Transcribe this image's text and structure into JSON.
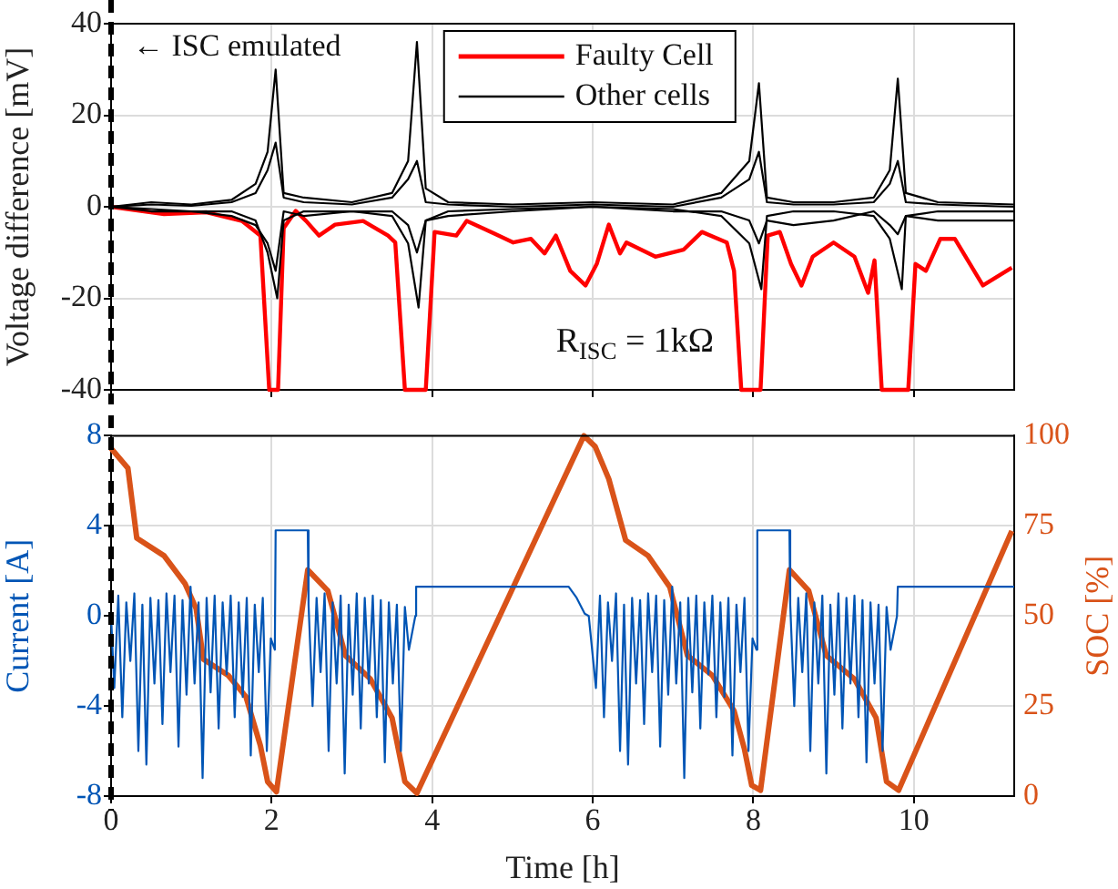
{
  "chart_data": [
    {
      "type": "line",
      "ylabel": "Voltage difference [mV]",
      "xlim": [
        0,
        11.25
      ],
      "xticks": [
        0,
        2,
        4,
        6,
        8,
        10
      ],
      "ylim": [
        -40,
        40
      ],
      "yticks": [
        -40,
        -20,
        0,
        20,
        40
      ],
      "grid": true,
      "tick_labels": "y",
      "legend": "top",
      "line_style": "solid",
      "marker": "none",
      "annotations": [
        "R$_{ISC}$ = 1kΩ"
      ],
      "ref_lines": [
        {
          "axis": "x",
          "value": 0,
          "label": "← ISC emulated",
          "color": "#000000",
          "line_style": "dashed"
        }
      ],
      "series": [
        {
          "color": "#000000",
          "x": [
            0,
            0.5,
            1,
            1.5,
            1.8,
            1.95,
            2.05,
            2.15,
            2.4,
            3,
            3.5,
            3.7,
            3.81,
            3.92,
            4.2,
            5,
            6,
            7,
            7.6,
            7.95,
            8.07,
            8.17,
            8.5,
            9,
            9.5,
            9.7,
            9.8,
            9.9,
            10.3,
            11.25
          ],
          "values": [
            0,
            0.5,
            0.2,
            1,
            3,
            8,
            14,
            2,
            1,
            0.5,
            2,
            6,
            10,
            1,
            0.5,
            0,
            0.5,
            0,
            2,
            6,
            12,
            1,
            0.5,
            0.5,
            1,
            5,
            10,
            1,
            0.5,
            0
          ]
        },
        {
          "color": "#000000",
          "x": [
            0,
            0.5,
            1,
            1.5,
            1.8,
            1.95,
            2.05,
            2.15,
            2.4,
            3,
            3.5,
            3.7,
            3.81,
            3.92,
            4.2,
            5,
            6,
            7,
            7.6,
            7.95,
            8.07,
            8.17,
            8.5,
            9,
            9.5,
            9.7,
            9.8,
            9.9,
            10.3,
            11.25
          ],
          "values": [
            0,
            -0.5,
            -1,
            -2,
            -4,
            -8,
            -14,
            -1,
            -2,
            -1,
            -1,
            -4,
            -10,
            -3,
            -2,
            -1,
            0,
            -1,
            -1,
            -3,
            -8,
            -3,
            -4,
            -3,
            -1,
            -4,
            -6,
            -2,
            -3,
            -3
          ]
        },
        {
          "color": "#000000",
          "x": [
            0,
            0.5,
            1,
            1.5,
            1.8,
            1.95,
            2.07,
            2.15,
            2.4,
            3,
            3.5,
            3.7,
            3.83,
            3.92,
            4.2,
            5,
            6,
            7,
            7.6,
            7.95,
            8.1,
            8.17,
            8.5,
            9,
            9.5,
            9.7,
            9.85,
            9.9,
            10.3,
            11.25
          ],
          "values": [
            0,
            -1,
            -1,
            -1,
            -3,
            -10,
            -20,
            -3,
            -1,
            -1,
            -2,
            -8,
            -22,
            -3,
            -1,
            -0.5,
            0,
            -0.5,
            -2,
            -8,
            -18,
            -2,
            -1,
            -1,
            -2,
            -7,
            -18,
            -2,
            -1,
            -1
          ]
        },
        {
          "name": "Other cells",
          "color": "#000000",
          "x": [
            0,
            0.5,
            1,
            1.5,
            1.8,
            1.95,
            2.05,
            2.15,
            2.4,
            3,
            3.5,
            3.7,
            3.81,
            3.92,
            4.2,
            5,
            6,
            7,
            7.6,
            7.95,
            8.07,
            8.17,
            8.5,
            9,
            9.5,
            9.7,
            9.8,
            9.9,
            10.3,
            11.25
          ],
          "values": [
            0,
            1,
            0.5,
            1.5,
            5,
            12,
            30,
            3,
            2,
            1,
            3,
            10,
            36,
            4,
            1,
            0.5,
            1,
            0.5,
            3,
            10,
            27,
            2,
            1,
            1,
            2,
            8,
            28,
            3,
            1,
            0.5
          ]
        },
        {
          "name": "Faulty Cell",
          "color": "#ff0000",
          "x": [
            0,
            0.66,
            1.19,
            1.63,
            1.86,
            1.97,
            2.08,
            2.15,
            2.3,
            2.43,
            2.59,
            2.79,
            3.14,
            3.45,
            3.54,
            3.66,
            3.92,
            4.03,
            4.3,
            4.43,
            4.83,
            5.01,
            5.23,
            5.4,
            5.54,
            5.72,
            5.91,
            6.05,
            6.2,
            6.34,
            6.42,
            6.78,
            7.13,
            7.36,
            7.67,
            7.76,
            7.85,
            8.09,
            8.18,
            8.33,
            8.47,
            8.6,
            8.74,
            9,
            9.26,
            9.43,
            9.51,
            9.6,
            9.93,
            10.02,
            10.15,
            10.33,
            10.51,
            10.86,
            11.22
          ],
          "values": [
            0,
            -1.6,
            -1.2,
            -3.1,
            -6.3,
            -40,
            -40,
            -4.7,
            -0.9,
            -3.1,
            -6.3,
            -3.9,
            -3.1,
            -6.3,
            -7.8,
            -40,
            -40,
            -5.5,
            -6.3,
            -3.1,
            -6.3,
            -7.8,
            -7,
            -10.2,
            -6.3,
            -14,
            -17.2,
            -12.5,
            -3.9,
            -10.2,
            -7.8,
            -10.9,
            -9.4,
            -5.5,
            -7.8,
            -14,
            -40,
            -40,
            -6.3,
            -5.5,
            -12.5,
            -17.2,
            -10.9,
            -7.8,
            -10.9,
            -18.8,
            -11.7,
            -40,
            -40,
            -12.5,
            -14,
            -7,
            -7,
            -17.2,
            -13.3
          ]
        }
      ]
    },
    {
      "type": "line",
      "xlabel": "Time [h]",
      "ylabel": "Current [A]",
      "y2label": "SOC [%]",
      "xlim": [
        0,
        11.25
      ],
      "xticks": [
        0,
        2,
        4,
        6,
        8,
        10
      ],
      "ylim": [
        -8,
        8
      ],
      "yticks": [
        -8,
        -4,
        0,
        4,
        8
      ],
      "y2lim": [
        0,
        100
      ],
      "y2ticks": [
        0,
        25,
        50,
        75,
        100
      ],
      "grid": true,
      "marker": "none",
      "line_style": "solid",
      "ref_lines": [
        {
          "axis": "x",
          "value": 0,
          "color": "#000000",
          "line_style": "dashed"
        }
      ],
      "series": [
        {
          "color": "#0055b5",
          "axis": "y",
          "x": [
            0,
            0.04,
            0.09,
            0.14,
            0.19,
            0.24,
            0.29,
            0.34,
            0.39,
            0.44,
            0.49,
            0.54,
            0.59,
            0.64,
            0.69,
            0.74,
            0.79,
            0.84,
            0.89,
            0.94,
            0.99,
            1.04,
            1.09,
            1.14,
            1.19,
            1.24,
            1.29,
            1.34,
            1.39,
            1.44,
            1.49,
            1.54,
            1.59,
            1.64,
            1.69,
            1.74,
            1.79,
            1.84,
            1.89,
            1.94,
            1.99,
            2.04,
            2.05,
            2.45,
            2.46,
            2.51,
            2.56,
            2.61,
            2.66,
            2.71,
            2.76,
            2.81,
            2.86,
            2.91,
            2.96,
            3.01,
            3.06,
            3.11,
            3.16,
            3.21,
            3.26,
            3.31,
            3.36,
            3.41,
            3.46,
            3.51,
            3.56,
            3.61,
            3.66,
            3.71,
            3.79,
            3.8,
            5.7,
            5.8,
            5.9,
            5.95,
            6.04,
            6.09,
            6.14,
            6.19,
            6.24,
            6.29,
            6.34,
            6.39,
            6.44,
            6.49,
            6.54,
            6.59,
            6.64,
            6.69,
            6.74,
            6.79,
            6.84,
            6.89,
            6.94,
            6.99,
            7.04,
            7.09,
            7.14,
            7.19,
            7.24,
            7.29,
            7.34,
            7.39,
            7.44,
            7.49,
            7.54,
            7.59,
            7.64,
            7.69,
            7.74,
            7.79,
            7.84,
            7.89,
            7.94,
            7.99,
            8.04,
            8.05,
            8.45,
            8.46,
            8.51,
            8.56,
            8.61,
            8.66,
            8.71,
            8.76,
            8.81,
            8.86,
            8.91,
            8.96,
            9.01,
            9.06,
            9.11,
            9.16,
            9.21,
            9.26,
            9.31,
            9.36,
            9.41,
            9.46,
            9.51,
            9.56,
            9.61,
            9.66,
            9.71,
            9.79,
            9.8,
            11.25
          ],
          "values": [
            0,
            -3.2,
            0.9,
            -4.5,
            0.6,
            -2,
            1,
            -6,
            0.5,
            -6.6,
            0.8,
            -3,
            0.7,
            -4.8,
            1,
            -2.5,
            0.9,
            -5.8,
            0.7,
            -3.5,
            1.3,
            -3,
            0.6,
            -7.2,
            0.8,
            -3.4,
            0.9,
            -5,
            0.6,
            -2.6,
            0.9,
            -4.5,
            0.6,
            -3.6,
            0.8,
            -6.2,
            0.5,
            -2.5,
            0.8,
            -6,
            -1,
            -1.5,
            3.8,
            3.8,
            0.5,
            -4,
            0.8,
            -2.5,
            1,
            -6,
            0.6,
            -3,
            0.9,
            -7,
            0.5,
            -3.5,
            1,
            -5,
            0.8,
            -3,
            0.9,
            -4.5,
            0.7,
            -6.5,
            0.6,
            -3,
            0.5,
            -6,
            0.4,
            -1.5,
            0,
            1.3,
            1.3,
            0.8,
            0.1,
            0,
            -3.2,
            0.9,
            -4.5,
            0.6,
            -2,
            1,
            -6,
            0.5,
            -6.6,
            0.8,
            -3,
            0.7,
            -4.8,
            1,
            -2.5,
            0.9,
            -5.8,
            0.7,
            -3.5,
            1.3,
            -3,
            0.6,
            -7.2,
            0.8,
            -3.4,
            0.9,
            -5,
            0.6,
            -2.6,
            0.9,
            -4.5,
            0.6,
            -3.6,
            0.8,
            -6.2,
            0.5,
            -2.5,
            0.8,
            -6,
            -1,
            -1.5,
            3.8,
            3.8,
            0.5,
            -4,
            0.8,
            -2.5,
            1,
            -6,
            0.6,
            -3,
            0.9,
            -7,
            0.5,
            -3.5,
            1,
            -5,
            0.8,
            -3,
            0.9,
            -4.5,
            0.7,
            -6.5,
            0.6,
            -3,
            0.5,
            -6,
            0.4,
            -1.5,
            0,
            1.3,
            1.3
          ]
        },
        {
          "color": "#d95319",
          "axis": "y2",
          "x": [
            0,
            0.21,
            0.32,
            0.66,
            0.92,
            1.06,
            1.15,
            1.46,
            1.68,
            1.86,
            1.95,
            2.06,
            2.45,
            2.7,
            2.92,
            3.23,
            3.5,
            3.66,
            3.81,
            5.89,
            6.03,
            6.2,
            6.41,
            6.69,
            6.96,
            7.18,
            7.49,
            7.76,
            7.89,
            7.98,
            8.09,
            8.45,
            8.69,
            8.91,
            9.26,
            9.53,
            9.66,
            9.81,
            11.22
          ],
          "values": [
            96.5,
            91,
            71.6,
            66.7,
            59,
            52,
            38,
            33.5,
            27.6,
            14,
            4,
            1.2,
            62.8,
            57,
            39,
            32.5,
            21.7,
            4,
            0.8,
            100,
            97,
            88,
            71,
            66.7,
            58,
            39,
            33.5,
            23.7,
            13,
            3,
            1.6,
            62.8,
            57,
            39,
            32.5,
            21.7,
            4,
            1.6,
            73.6
          ]
        }
      ]
    }
  ]
}
